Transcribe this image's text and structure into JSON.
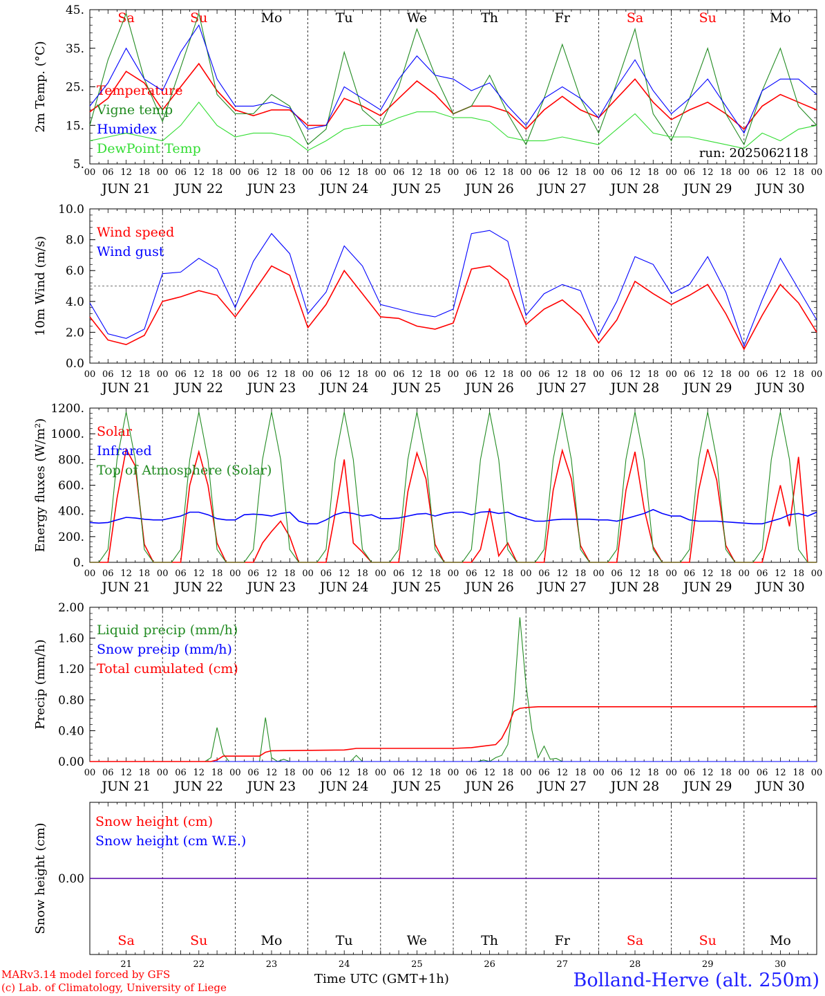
{
  "days": [
    "JUN 21",
    "JUN 22",
    "JUN 23",
    "JUN 24",
    "JUN 25",
    "JUN 26",
    "JUN 27",
    "JUN 28",
    "JUN 29",
    "JUN 30"
  ],
  "day_numbers": [
    "21",
    "22",
    "23",
    "24",
    "25",
    "26",
    "27",
    "28",
    "29",
    "30"
  ],
  "weekdays": [
    "Sa",
    "Su",
    "Mo",
    "Tu",
    "We",
    "Th",
    "Fr",
    "Sa",
    "Su",
    "Mo"
  ],
  "weekend_flags": [
    true,
    true,
    false,
    false,
    false,
    false,
    false,
    true,
    true,
    false
  ],
  "hour_ticks": [
    "00",
    "06",
    "12",
    "18"
  ],
  "colors": {
    "red": "#ff0000",
    "green": "#228b22",
    "blue": "#0000ff",
    "lightgreen": "#33dd33",
    "weekend": "#ff0000"
  },
  "footer": {
    "credit_line1": "MARv3.14 model forced by GFS",
    "credit_line2": "(c) Lab. of Climatology, University of Liege",
    "xaxis_title": "Time UTC (GMT+1h)",
    "xaxis_title_overlay": "JUN",
    "location": "Bolland-Herve (alt. 250m)"
  },
  "chart_data": [
    {
      "type": "line",
      "ylabel": "2m Temp. (°C)",
      "yticks": [
        "45.",
        "35.",
        "25.",
        "15.",
        "5."
      ],
      "ylim": [
        5,
        45
      ],
      "run_label": "run: 2025062118",
      "x_unit": "hours since JUN 21 00 UTC",
      "x": [
        0,
        6,
        12,
        18,
        24,
        30,
        36,
        42,
        48,
        54,
        60,
        66,
        72,
        78,
        84,
        90,
        96,
        102,
        108,
        114,
        120,
        126,
        132,
        138,
        144,
        150,
        156,
        162,
        168,
        174,
        180,
        186,
        192,
        198,
        204,
        210,
        216,
        222,
        228,
        234,
        240
      ],
      "series": [
        {
          "name": "Temperature",
          "color": "red",
          "values": [
            18.5,
            22,
            29,
            26,
            19,
            25,
            31,
            24,
            19,
            17.5,
            19,
            19,
            15,
            15,
            22,
            20,
            17.5,
            22,
            26.5,
            23,
            18,
            20,
            20,
            18.5,
            14,
            19,
            22.5,
            19,
            17,
            22,
            27,
            21,
            16.5,
            19,
            21,
            18,
            14,
            20,
            23,
            21,
            19
          ]
        },
        {
          "name": "Vigne temp",
          "color": "green",
          "values": [
            15,
            32,
            44,
            27,
            16,
            30,
            44,
            23,
            18,
            18,
            23,
            20,
            10,
            14,
            34,
            19,
            15,
            25,
            40,
            28,
            18,
            20,
            28,
            18,
            10,
            22,
            36,
            22,
            13,
            26,
            40,
            18,
            11,
            22,
            35,
            18,
            10,
            24,
            35,
            20,
            15
          ]
        },
        {
          "name": "Humidex",
          "color": "blue",
          "values": [
            20,
            26,
            35,
            27,
            24,
            34,
            41,
            27,
            20,
            20,
            21,
            19.5,
            14,
            15,
            25,
            22,
            19,
            27,
            33,
            28,
            27,
            24,
            26,
            20,
            15,
            22,
            25,
            22,
            17,
            25,
            32,
            24,
            18,
            22,
            27,
            20,
            13,
            24,
            27,
            27,
            23
          ]
        },
        {
          "name": "DewPoint Temp",
          "color": "lightgreen",
          "values": [
            11,
            12,
            13,
            12,
            11,
            15,
            21,
            15,
            12,
            13,
            13,
            12,
            8.5,
            11,
            14,
            15,
            15,
            17,
            18.5,
            18.5,
            17,
            17,
            16,
            12,
            11,
            11,
            12,
            11,
            10,
            14,
            18,
            13,
            12,
            12,
            11,
            10,
            9,
            13,
            11,
            14,
            15
          ]
        }
      ]
    },
    {
      "type": "line",
      "ylabel": "10m Wind (m/s)",
      "yticks": [
        "10.0",
        "8.0",
        "6.0",
        "4.0",
        "2.0",
        "0.0"
      ],
      "ylim": [
        0,
        10
      ],
      "ref_line": 5,
      "x": [
        0,
        6,
        12,
        18,
        24,
        30,
        36,
        42,
        48,
        54,
        60,
        66,
        72,
        78,
        84,
        90,
        96,
        102,
        108,
        114,
        120,
        126,
        132,
        138,
        144,
        150,
        156,
        162,
        168,
        174,
        180,
        186,
        192,
        198,
        204,
        210,
        216,
        222,
        228,
        234,
        240
      ],
      "series": [
        {
          "name": "Wind speed",
          "color": "red",
          "values": [
            3,
            1.5,
            1.2,
            1.8,
            4,
            4.3,
            4.7,
            4.4,
            3,
            4.6,
            6.3,
            5.7,
            2.3,
            3.8,
            6,
            4.5,
            3,
            2.9,
            2.4,
            2.2,
            2.6,
            6.1,
            6.3,
            5.4,
            2.5,
            3.5,
            4.1,
            3.1,
            1.3,
            2.8,
            5.3,
            4.5,
            3.8,
            4.4,
            5.1,
            3.2,
            0.9,
            3.1,
            5.1,
            3.9,
            2.0
          ]
        },
        {
          "name": "Wind gust",
          "color": "blue",
          "values": [
            3.9,
            1.9,
            1.6,
            2.2,
            5.8,
            5.9,
            6.8,
            6.1,
            3.6,
            6.6,
            8.4,
            7.1,
            3.2,
            4.6,
            7.6,
            6.3,
            3.8,
            3.5,
            3.2,
            3.0,
            3.5,
            8.4,
            8.6,
            7.9,
            3.1,
            4.5,
            5.1,
            4.7,
            1.8,
            4.0,
            6.9,
            6.4,
            4.5,
            5.1,
            6.9,
            4.6,
            1.1,
            4.1,
            6.8,
            4.8,
            2.8
          ]
        }
      ]
    },
    {
      "type": "line",
      "ylabel": "Energy fluxes (W/m²)",
      "yticks": [
        "1200.",
        "1000.",
        "800.",
        "600.",
        "400.",
        "200.",
        "0."
      ],
      "ylim": [
        0,
        1200
      ],
      "x": [
        0,
        3,
        6,
        9,
        12,
        15,
        18,
        21,
        24,
        27,
        30,
        33,
        36,
        39,
        42,
        45,
        48,
        51,
        54,
        57,
        60,
        63,
        66,
        69,
        72,
        75,
        78,
        81,
        84,
        87,
        90,
        93,
        96,
        99,
        102,
        105,
        108,
        111,
        114,
        117,
        120,
        123,
        126,
        129,
        132,
        135,
        138,
        141,
        144,
        147,
        150,
        153,
        156,
        159,
        162,
        165,
        168,
        171,
        174,
        177,
        180,
        183,
        186,
        189,
        192,
        195,
        198,
        201,
        204,
        207,
        210,
        213,
        216,
        219,
        222,
        225,
        228,
        231,
        234,
        237,
        240
      ],
      "series": [
        {
          "name": "Solar",
          "color": "red",
          "values": [
            0,
            0,
            0,
            500,
            880,
            750,
            140,
            0,
            0,
            0,
            0,
            600,
            860,
            600,
            150,
            0,
            0,
            0,
            0,
            150,
            240,
            320,
            200,
            0,
            0,
            0,
            0,
            380,
            800,
            150,
            80,
            0,
            0,
            0,
            0,
            550,
            850,
            650,
            140,
            0,
            0,
            0,
            0,
            100,
            420,
            50,
            150,
            0,
            0,
            0,
            0,
            560,
            870,
            650,
            130,
            0,
            0,
            0,
            0,
            560,
            860,
            420,
            120,
            0,
            0,
            0,
            0,
            560,
            880,
            640,
            130,
            0,
            0,
            0,
            0,
            300,
            600,
            280,
            820,
            0,
            0
          ]
        },
        {
          "name": "Infrared",
          "color": "blue",
          "values": [
            310,
            305,
            310,
            330,
            350,
            345,
            335,
            330,
            330,
            345,
            360,
            390,
            390,
            370,
            340,
            330,
            330,
            370,
            375,
            370,
            360,
            380,
            390,
            320,
            300,
            300,
            330,
            370,
            390,
            380,
            360,
            370,
            340,
            340,
            345,
            360,
            375,
            380,
            360,
            380,
            390,
            390,
            370,
            390,
            395,
            380,
            390,
            360,
            340,
            320,
            320,
            330,
            335,
            335,
            335,
            335,
            330,
            330,
            320,
            340,
            360,
            380,
            410,
            380,
            360,
            360,
            330,
            320,
            320,
            320,
            315,
            310,
            305,
            300,
            300,
            320,
            340,
            370,
            380,
            360,
            390
          ]
        },
        {
          "name": "Top of Atmosphere (Solar)",
          "color": "green",
          "values": [
            0,
            0,
            100,
            800,
            1170,
            800,
            100,
            0,
            0,
            0,
            100,
            800,
            1170,
            800,
            100,
            0,
            0,
            0,
            100,
            800,
            1170,
            800,
            100,
            0,
            0,
            0,
            100,
            800,
            1170,
            800,
            100,
            0,
            0,
            0,
            100,
            800,
            1170,
            800,
            100,
            0,
            0,
            0,
            100,
            800,
            1170,
            800,
            100,
            0,
            0,
            0,
            100,
            800,
            1170,
            800,
            100,
            0,
            0,
            0,
            100,
            800,
            1170,
            800,
            100,
            0,
            0,
            0,
            100,
            800,
            1170,
            800,
            100,
            0,
            0,
            0,
            100,
            800,
            1170,
            800,
            100,
            0,
            0
          ]
        }
      ]
    },
    {
      "type": "line",
      "ylabel": "Precip (mm/h)",
      "yticks": [
        "2.00",
        "1.60",
        "1.20",
        "0.80",
        "0.40",
        "0.00"
      ],
      "ylim": [
        0,
        2
      ],
      "series": [
        {
          "name": "Liquid precip (mm/h)",
          "color": "green",
          "x": [
            0,
            38,
            40,
            42,
            44,
            46,
            48,
            56,
            58,
            60,
            62,
            64,
            66,
            68,
            86,
            88,
            90,
            128,
            130,
            132,
            134,
            136,
            138,
            140,
            142,
            144,
            146,
            148,
            150,
            152,
            154,
            156,
            240
          ],
          "values": [
            0,
            0,
            0.05,
            0.44,
            0.1,
            0,
            0,
            0,
            0.57,
            0.05,
            0,
            0.03,
            0,
            0,
            0,
            0.08,
            0,
            0,
            0.02,
            0,
            0.05,
            0.08,
            0.22,
            0.8,
            1.87,
            1.0,
            0.4,
            0.05,
            0.2,
            0.03,
            0.04,
            0,
            0
          ]
        },
        {
          "name": "Snow precip (mm/h)",
          "color": "blue",
          "x": [
            0,
            240
          ],
          "values": [
            0,
            0
          ]
        },
        {
          "name": "Total cumulated (cm)",
          "color": "red",
          "x": [
            0,
            40,
            42,
            44,
            56,
            58,
            60,
            84,
            86,
            88,
            120,
            126,
            130,
            134,
            136,
            138,
            140,
            142,
            144,
            148,
            150,
            240
          ],
          "values": [
            0,
            0,
            0.02,
            0.07,
            0.07,
            0.12,
            0.14,
            0.15,
            0.16,
            0.17,
            0.17,
            0.18,
            0.2,
            0.22,
            0.3,
            0.45,
            0.65,
            0.69,
            0.7,
            0.71,
            0.71,
            0.71
          ]
        }
      ]
    },
    {
      "type": "line",
      "ylabel": "Snow height (cm)",
      "yticks": [
        "0.00"
      ],
      "ylim": [
        -1,
        1
      ],
      "series": [
        {
          "name": "Snow height (cm)",
          "color": "red",
          "x": [
            0,
            240
          ],
          "values": [
            0,
            0
          ]
        },
        {
          "name": "Snow height (cm W.E.)",
          "color": "blue",
          "x": [
            0,
            240
          ],
          "values": [
            0,
            0
          ]
        }
      ]
    }
  ]
}
